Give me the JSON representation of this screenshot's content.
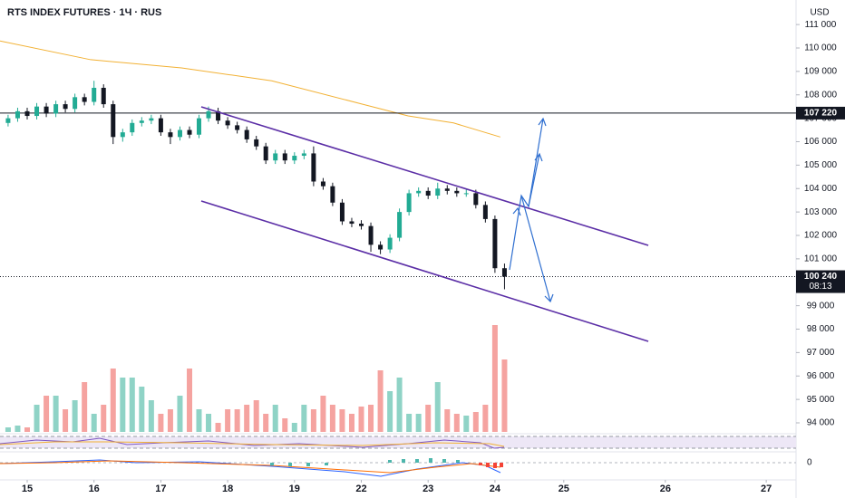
{
  "chart_data": {
    "type": "candlestick",
    "title": "RTS INDEX FUTURES · 1Ч · RUS",
    "currency": "USD",
    "ylim": [
      93575,
      112048
    ],
    "yticks": [
      {
        "value": 111000,
        "label": "111 000"
      },
      {
        "value": 110000,
        "label": "110 000"
      },
      {
        "value": 109000,
        "label": "109 000"
      },
      {
        "value": 108000,
        "label": "108 000"
      },
      {
        "value": 107000,
        "label": "107 000"
      },
      {
        "value": 106000,
        "label": "106 000"
      },
      {
        "value": 105000,
        "label": "105 000"
      },
      {
        "value": 104000,
        "label": "104 000"
      },
      {
        "value": 103000,
        "label": "103 000"
      },
      {
        "value": 102000,
        "label": "102 000"
      },
      {
        "value": 101000,
        "label": "101 000"
      },
      {
        "value": 100000,
        "label": "100 000"
      },
      {
        "value": 99000,
        "label": "99 000"
      },
      {
        "value": 98000,
        "label": "98 000"
      },
      {
        "value": 97000,
        "label": "97 000"
      },
      {
        "value": 96000,
        "label": "96 000"
      },
      {
        "value": 95000,
        "label": "95 000"
      },
      {
        "value": 94000,
        "label": "94 000"
      }
    ],
    "xlim": [
      -0.407,
      11.506
    ],
    "xticks": [
      {
        "value": 0,
        "label": "15"
      },
      {
        "value": 1,
        "label": "16"
      },
      {
        "value": 2,
        "label": "17"
      },
      {
        "value": 3,
        "label": "18"
      },
      {
        "value": 4,
        "label": "19"
      },
      {
        "value": 5,
        "label": "22"
      },
      {
        "value": 6,
        "label": "23"
      },
      {
        "value": 7,
        "label": "24"
      },
      {
        "value": 8.03,
        "label": "25"
      },
      {
        "value": 9.55,
        "label": "26"
      },
      {
        "value": 11.06,
        "label": "27"
      }
    ],
    "grid": false,
    "up_color": "#22ab94",
    "down_color": "#131722",
    "volume_up_color": "#8fd3c6",
    "volume_down_color": "#f5a3a0",
    "x": [
      -0.286,
      -0.143,
      0,
      0.143,
      0.286,
      0.429,
      0.571,
      0.714,
      0.857,
      1,
      1.143,
      1.286,
      1.429,
      1.571,
      1.714,
      1.857,
      2,
      2.143,
      2.286,
      2.429,
      2.571,
      2.714,
      2.857,
      3,
      3.143,
      3.286,
      3.429,
      3.571,
      3.714,
      3.857,
      4,
      4.143,
      4.286,
      4.429,
      4.571,
      4.714,
      4.857,
      5,
      5.143,
      5.286,
      5.429,
      5.571,
      5.714,
      5.857,
      6,
      6.143,
      6.286,
      6.429,
      6.571,
      6.714,
      6.857,
      7,
      7.143
    ],
    "open": [
      106800,
      107000,
      107300,
      107100,
      107500,
      107200,
      107600,
      107400,
      107900,
      107700,
      108300,
      107600,
      106200,
      106400,
      106800,
      106900,
      107000,
      106400,
      106200,
      106500,
      106300,
      107000,
      107300,
      106900,
      106700,
      106500,
      106100,
      105800,
      105200,
      105500,
      105200,
      105400,
      105500,
      104300,
      104100,
      103400,
      102600,
      102500,
      102400,
      101600,
      101400,
      101900,
      103000,
      103800,
      103900,
      103700,
      104000,
      103900,
      103800,
      103800,
      103300,
      102700,
      100600
    ],
    "high": [
      107150,
      107450,
      107450,
      107650,
      107650,
      107750,
      107750,
      108050,
      108050,
      108600,
      108450,
      107750,
      106550,
      106950,
      107050,
      107150,
      107150,
      106550,
      106650,
      106650,
      107150,
      107500,
      107450,
      107050,
      106850,
      106650,
      106250,
      105950,
      105650,
      105650,
      105550,
      105650,
      105800,
      104450,
      104250,
      103550,
      102750,
      102650,
      102550,
      101750,
      102050,
      103150,
      103950,
      104050,
      104050,
      104250,
      104150,
      104050,
      103950,
      103950,
      103450,
      102850,
      100800
    ],
    "low": [
      106650,
      106850,
      106950,
      106950,
      107050,
      107050,
      107250,
      107250,
      107550,
      107550,
      107450,
      105900,
      106000,
      106250,
      106650,
      106750,
      106250,
      105900,
      106050,
      106150,
      106150,
      106850,
      106750,
      106550,
      106350,
      105950,
      105650,
      105050,
      105050,
      105050,
      105050,
      105250,
      104100,
      103950,
      103250,
      102450,
      102350,
      102250,
      101300,
      101200,
      101250,
      101750,
      102850,
      103650,
      103550,
      103550,
      103750,
      103650,
      103650,
      103150,
      102550,
      100400,
      99700
    ],
    "close": [
      107000,
      107300,
      107100,
      107500,
      107200,
      107600,
      107400,
      107900,
      107700,
      108300,
      107600,
      106200,
      106400,
      106800,
      106900,
      107000,
      106400,
      106200,
      106500,
      106300,
      107000,
      107300,
      106900,
      106700,
      106500,
      106100,
      105800,
      105200,
      105500,
      105200,
      105400,
      105500,
      104300,
      104100,
      103400,
      102600,
      102500,
      102400,
      101600,
      101400,
      101900,
      103000,
      103800,
      103900,
      103700,
      104000,
      103900,
      103800,
      103800,
      103300,
      102700,
      100600,
      100240
    ],
    "volume": [
      5,
      7,
      5,
      30,
      40,
      40,
      25,
      35,
      55,
      20,
      30,
      70,
      60,
      60,
      50,
      35,
      20,
      25,
      40,
      70,
      25,
      20,
      10,
      25,
      25,
      30,
      35,
      20,
      30,
      15,
      10,
      30,
      25,
      40,
      30,
      25,
      20,
      28,
      30,
      68,
      45,
      60,
      20,
      20,
      30,
      55,
      25,
      20,
      18,
      22,
      30,
      118,
      80
    ],
    "ma": {
      "color": "#f2b134",
      "x": [
        -0.407,
        0.95,
        2.31,
        3.66,
        5.02,
        5.7,
        6.38,
        7.08
      ],
      "values": [
        110300,
        109500,
        109150,
        108600,
        107600,
        107100,
        106800,
        106200
      ]
    },
    "channel": {
      "color": "#5b2ea6",
      "lines": [
        {
          "x": [
            2.605,
            9.295
          ],
          "y": [
            107488,
            101575
          ]
        },
        {
          "x": [
            2.605,
            9.295
          ],
          "y": [
            103469,
            97478
          ]
        }
      ]
    },
    "hline": {
      "value": 107220,
      "label": "107 220"
    },
    "last_price": {
      "value": 100240,
      "label": "100 240",
      "countdown": "08:13"
    },
    "indicator_ticks": [
      0
    ]
  }
}
